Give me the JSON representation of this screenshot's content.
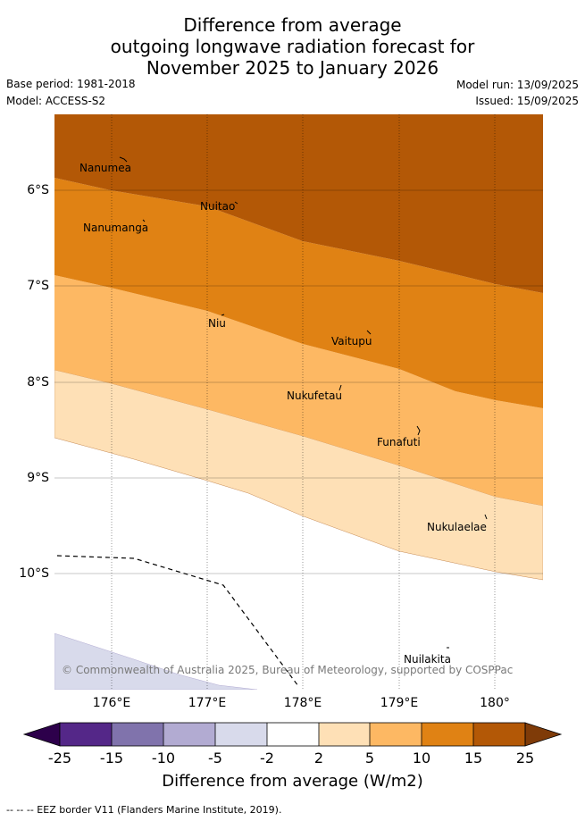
{
  "title": {
    "line1": "Difference from average",
    "line2": "outgoing longwave radiation forecast for",
    "line3": "November 2025 to January 2026"
  },
  "meta": {
    "base_period": "Base period: 1981-2018",
    "model": "Model: ACCESS-S2",
    "model_run": "Model run: 13/09/2025",
    "issued": "Issued: 15/09/2025"
  },
  "map": {
    "lat_ticks": [
      "6°S",
      "7°S",
      "8°S",
      "9°S",
      "10°S"
    ],
    "lon_ticks": [
      "176°E",
      "177°E",
      "178°E",
      "179°E",
      "180°"
    ],
    "places": [
      "Nanumea",
      "Nuitao",
      "Nanumanga",
      "Niu",
      "Vaitupu",
      "Nukufetau",
      "Funafuti",
      "Nukulaelae",
      "Nuilakita"
    ],
    "copyright": "© Commonwealth of Australia 2025, Bureau of Meteorology, supported by COSPPac",
    "colors": {
      "band_15_25": "#b35806",
      "band_10_15": "#e08214",
      "band_5_10": "#fdb863",
      "band_2_5": "#fee0b6",
      "band_m5_m2": "#d8daeb"
    }
  },
  "colorbar": {
    "ticks": [
      "-25",
      "-15",
      "-10",
      "-5",
      "-2",
      "2",
      "5",
      "10",
      "15",
      "25"
    ],
    "colors": [
      "#542788",
      "#8073ac",
      "#b2abd2",
      "#d8daeb",
      "#ffffff",
      "#fee0b6",
      "#fdb863",
      "#e08214",
      "#b35806"
    ],
    "under_color": "#2d004b",
    "over_color": "#7f3b08",
    "label": "Difference from average (W/m2)"
  },
  "footnote": "--  --  -- EEZ border V11 (Flanders Marine Institute, 2019)."
}
